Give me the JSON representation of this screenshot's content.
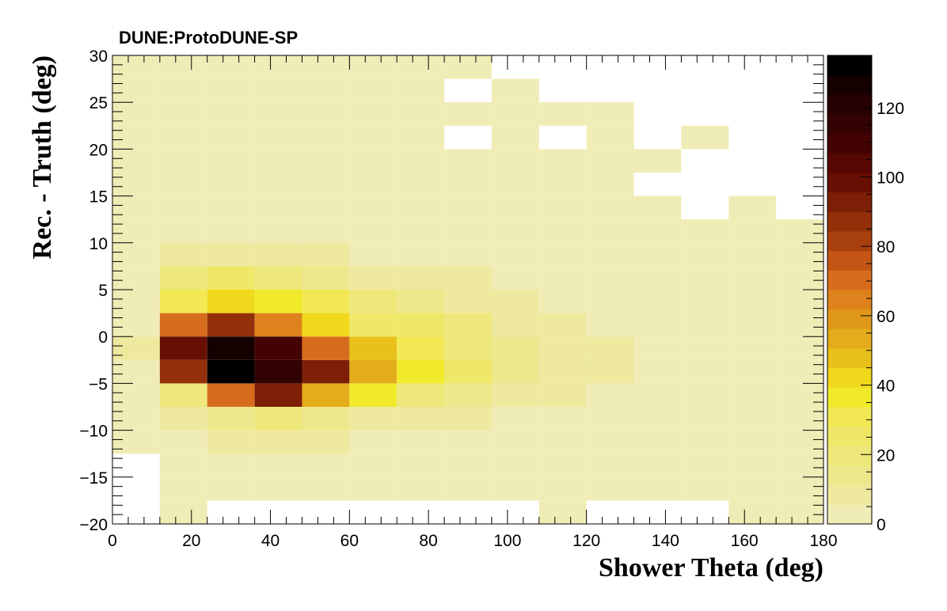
{
  "chart_data": {
    "type": "heatmap",
    "title": "DUNE:ProtoDUNE-SP",
    "xlabel": "Shower Theta (deg)",
    "ylabel": "Rec. - Truth (deg)",
    "xlim": [
      0,
      180
    ],
    "ylim": [
      -20,
      30
    ],
    "zlim": [
      0,
      135
    ],
    "x_bin_edges": [
      0,
      12,
      24,
      36,
      48,
      60,
      72,
      84,
      96,
      108,
      120,
      132,
      144,
      156,
      168,
      180
    ],
    "y_bin_edges": [
      -20,
      -17.5,
      -15,
      -12.5,
      -10,
      -7.5,
      -5,
      -2.5,
      0,
      2.5,
      5,
      7.5,
      10,
      12.5,
      15,
      17.5,
      20,
      22.5,
      25,
      27.5,
      30
    ],
    "x_ticks": [
      0,
      20,
      40,
      60,
      80,
      100,
      120,
      140,
      160,
      180
    ],
    "y_ticks": [
      -20,
      -15,
      -10,
      -5,
      0,
      5,
      10,
      15,
      20,
      25,
      30
    ],
    "colorbar_ticks": [
      0,
      20,
      40,
      60,
      80,
      100,
      120
    ],
    "colormap": [
      "#f0ecb6",
      "#eee99f",
      "#eee88c",
      "#eee77a",
      "#efe767",
      "#f1e854",
      "#f1ea2a",
      "#f0d91c",
      "#e8c11a",
      "#e3ac1a",
      "#e0981b",
      "#dd821c",
      "#d86c1e",
      "#c45516",
      "#a9410f",
      "#933009",
      "#7d1f06",
      "#680f04",
      "#560703",
      "#430302",
      "#330202",
      "#260101",
      "#150000",
      "#000000"
    ],
    "values": [
      [
        0,
        1,
        0,
        0,
        0,
        0,
        0,
        0,
        0,
        1,
        0,
        0,
        0,
        1,
        1
      ],
      [
        0,
        1,
        1,
        1,
        2,
        2,
        1,
        1,
        1,
        1,
        1,
        1,
        1,
        1,
        1
      ],
      [
        0,
        2,
        3,
        3,
        3,
        3,
        2,
        2,
        2,
        1,
        1,
        1,
        1,
        1,
        1
      ],
      [
        1,
        3,
        6,
        8,
        6,
        4,
        3,
        3,
        3,
        2,
        2,
        2,
        1,
        1,
        1
      ],
      [
        2,
        6,
        15,
        22,
        16,
        9,
        6,
        6,
        5,
        3,
        2,
        2,
        2,
        1,
        1
      ],
      [
        3,
        22,
        70,
        92,
        55,
        35,
        22,
        15,
        10,
        6,
        4,
        3,
        2,
        2,
        2
      ],
      [
        5,
        85,
        130,
        115,
        90,
        55,
        38,
        26,
        14,
        9,
        6,
        5,
        4,
        3,
        3
      ],
      [
        6,
        100,
        125,
        110,
        70,
        45,
        32,
        22,
        12,
        8,
        6,
        5,
        4,
        3,
        3
      ],
      [
        4,
        70,
        88,
        65,
        40,
        28,
        24,
        18,
        10,
        6,
        5,
        4,
        3,
        3,
        2
      ],
      [
        3,
        30,
        40,
        35,
        30,
        22,
        14,
        9,
        6,
        4,
        3,
        2,
        2,
        2,
        2
      ],
      [
        2,
        18,
        25,
        20,
        16,
        11,
        8,
        6,
        4,
        3,
        2,
        2,
        2,
        1,
        1
      ],
      [
        1,
        7,
        9,
        8,
        6,
        5,
        4,
        3,
        2,
        2,
        1,
        1,
        1,
        1,
        1
      ],
      [
        1,
        4,
        5,
        4,
        3,
        3,
        2,
        2,
        1,
        1,
        1,
        1,
        1,
        1,
        1
      ],
      [
        1,
        3,
        4,
        3,
        3,
        2,
        2,
        1,
        1,
        1,
        1,
        1,
        0,
        1,
        0
      ],
      [
        1,
        2,
        3,
        2,
        2,
        2,
        1,
        1,
        1,
        1,
        1,
        0,
        0,
        0,
        0
      ],
      [
        1,
        2,
        2,
        2,
        2,
        1,
        1,
        1,
        1,
        1,
        1,
        1,
        0,
        0,
        0
      ],
      [
        1,
        2,
        2,
        2,
        1,
        1,
        1,
        0,
        1,
        0,
        1,
        0,
        1,
        0,
        0
      ],
      [
        1,
        2,
        2,
        2,
        1,
        1,
        1,
        1,
        1,
        1,
        1,
        0,
        0,
        0,
        0
      ],
      [
        1,
        1,
        1,
        1,
        1,
        1,
        1,
        0,
        1,
        0,
        0,
        0,
        0,
        0,
        0
      ],
      [
        1,
        1,
        1,
        1,
        1,
        1,
        1,
        1,
        0,
        0,
        0,
        0,
        0,
        0,
        0
      ]
    ]
  }
}
